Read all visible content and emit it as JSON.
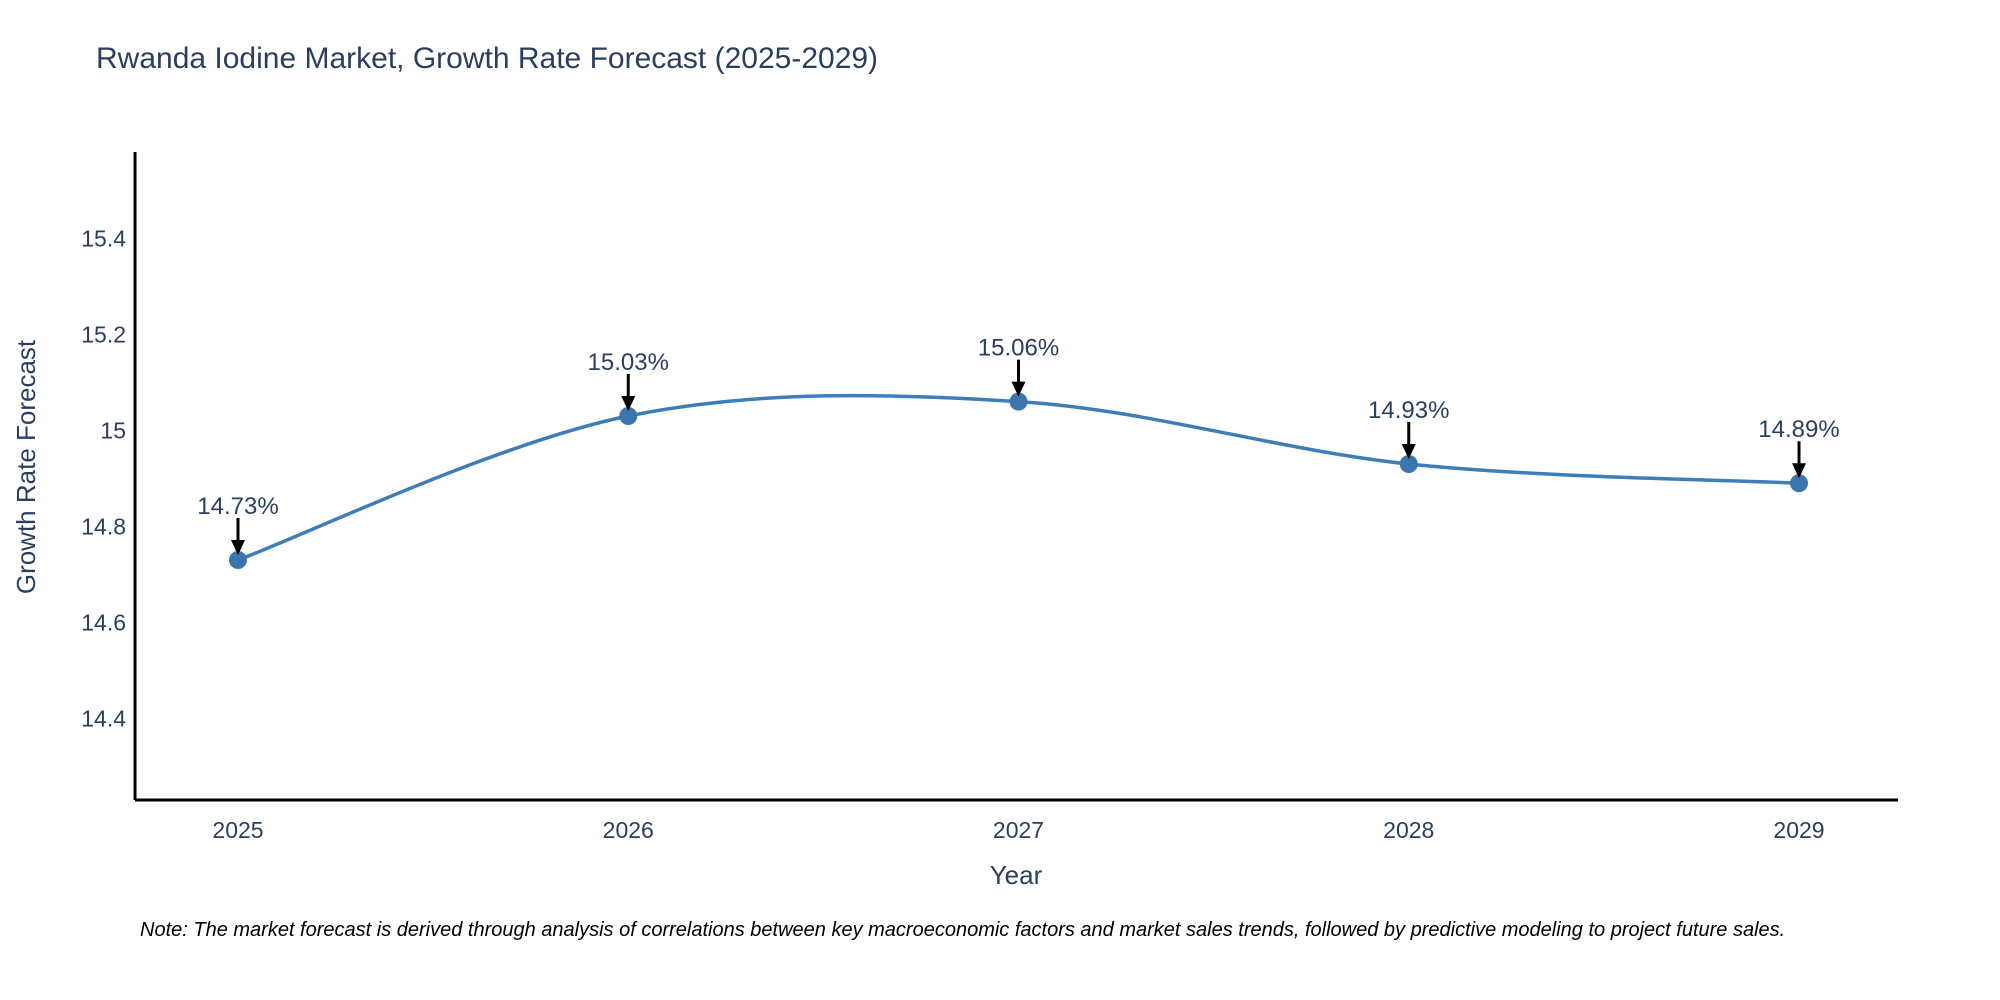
{
  "page": {
    "background_color": "#ffffff"
  },
  "chart_data": {
    "type": "line",
    "title": "Rwanda Iodine Market, Growth Rate Forecast (2025-2029)",
    "xlabel": "Year",
    "ylabel": "Growth Rate Forecast",
    "x": [
      2025,
      2026,
      2027,
      2028,
      2029
    ],
    "series": [
      {
        "name": "Growth Rate Forecast",
        "values": [
          14.73,
          15.03,
          15.06,
          14.93,
          14.89
        ]
      }
    ],
    "point_labels": [
      "14.73%",
      "15.03%",
      "15.06%",
      "14.93%",
      "14.89%"
    ],
    "xtick_labels": [
      "2025",
      "2026",
      "2027",
      "2028",
      "2029"
    ],
    "ytick_values": [
      14.4,
      14.6,
      14.8,
      15,
      15.2,
      15.4
    ],
    "ytick_labels": [
      "14.4",
      "14.6",
      "14.8",
      "15",
      "15.2",
      "15.4"
    ],
    "ylim": [
      14.23,
      15.58
    ],
    "grid": false,
    "legend_position": "none",
    "line_shape": "spline",
    "colors": {
      "line": "#3f7db6",
      "marker": "#3a76ad",
      "axis": "#000000",
      "arrow": "#000000",
      "text": "#2a3f5f",
      "note_text": "#000000"
    },
    "note": "Note: The market forecast is derived through analysis of correlations between key macroeconomic factors and market sales trends, followed by predictive modeling to project future sales."
  }
}
